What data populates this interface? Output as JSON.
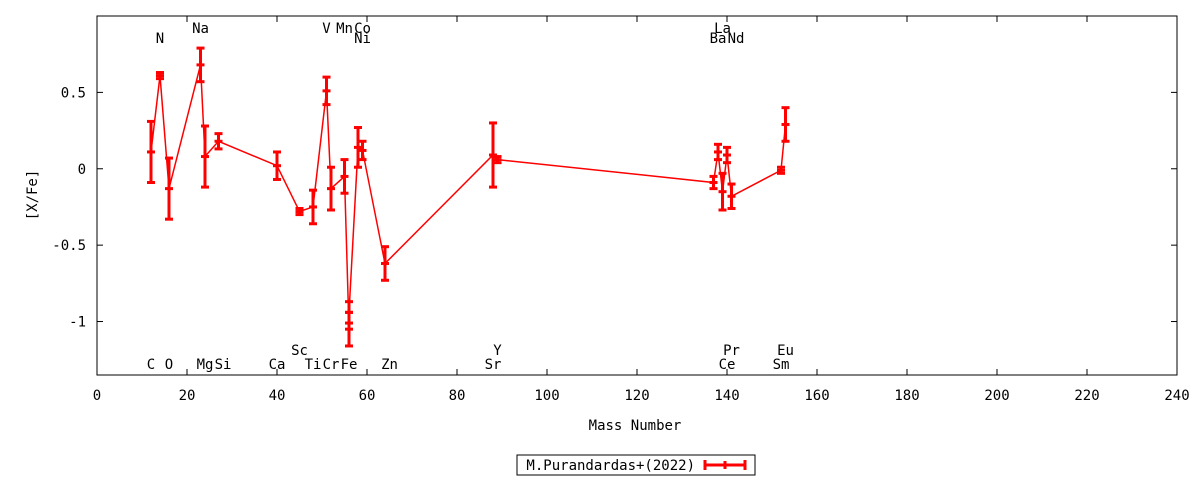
{
  "chart_data": {
    "type": "line",
    "xlabel": "Mass Number",
    "ylabel": "[X/Fe]",
    "xlim": [
      0,
      240
    ],
    "ylim": [
      -1.35,
      1.0
    ],
    "x_ticks": [
      "0",
      "20",
      "40",
      "60",
      "80",
      "100",
      "120",
      "140",
      "160",
      "180",
      "200",
      "220",
      "240"
    ],
    "x_tick_values": [
      0,
      20,
      40,
      60,
      80,
      100,
      120,
      140,
      160,
      180,
      200,
      220,
      240
    ],
    "y_ticks": [
      "0.5",
      "0",
      "-0.5",
      "-1"
    ],
    "y_tick_values": [
      0.5,
      0,
      -0.5,
      -1
    ],
    "grid": false,
    "legend_position": "bottom-center",
    "series": [
      {
        "name": "M.Purandardas+(2022)",
        "color": "#ff0000",
        "points": [
          {
            "x": 12,
            "y": 0.11,
            "err": 0.2
          },
          {
            "x": 14,
            "y": 0.61,
            "err": 0.02
          },
          {
            "x": 16,
            "y": -0.13,
            "err": 0.2
          },
          {
            "x": 23,
            "y": 0.68,
            "err": 0.11
          },
          {
            "x": 24,
            "y": 0.08,
            "err": 0.2
          },
          {
            "x": 27,
            "y": 0.18,
            "err": 0.05
          },
          {
            "x": 40,
            "y": 0.02,
            "err": 0.09
          },
          {
            "x": 45,
            "y": -0.28,
            "err": 0.02
          },
          {
            "x": 48,
            "y": -0.25,
            "err": 0.11
          },
          {
            "x": 51,
            "y": 0.51,
            "err": 0.09
          },
          {
            "x": 52,
            "y": -0.13,
            "err": 0.14
          },
          {
            "x": 55,
            "y": -0.05,
            "err": 0.11
          },
          {
            "x": 56,
            "y": -1.05,
            "err": 0.11
          },
          {
            "x": 56,
            "y": -0.94,
            "err": 0.07
          },
          {
            "x": 58,
            "y": 0.14,
            "err": 0.13
          },
          {
            "x": 59,
            "y": 0.12,
            "err": 0.06
          },
          {
            "x": 64,
            "y": -0.62,
            "err": 0.11
          },
          {
            "x": 88,
            "y": 0.09,
            "err": 0.21
          },
          {
            "x": 89,
            "y": 0.06,
            "err": 0.02
          },
          {
            "x": 137,
            "y": -0.09,
            "err": 0.04
          },
          {
            "x": 138,
            "y": 0.11,
            "err": 0.05
          },
          {
            "x": 139,
            "y": -0.15,
            "err": 0.12
          },
          {
            "x": 140,
            "y": 0.09,
            "err": 0.05
          },
          {
            "x": 141,
            "y": -0.18,
            "err": 0.08
          },
          {
            "x": 152,
            "y": -0.01,
            "err": 0.02
          },
          {
            "x": 153,
            "y": 0.29,
            "err": 0.11
          }
        ]
      }
    ],
    "element_labels": [
      {
        "text": "C",
        "x": 12,
        "row": "bottom"
      },
      {
        "text": "O",
        "x": 16,
        "row": "bottom"
      },
      {
        "text": "Mg",
        "x": 24,
        "row": "bottom"
      },
      {
        "text": "Si",
        "x": 28,
        "row": "bottom"
      },
      {
        "text": "Ca",
        "x": 40,
        "row": "bottom"
      },
      {
        "text": "Ti",
        "x": 48,
        "row": "bottom"
      },
      {
        "text": "Cr",
        "x": 52,
        "row": "bottom"
      },
      {
        "text": "Fe",
        "x": 56,
        "row": "bottom"
      },
      {
        "text": "Zn",
        "x": 65,
        "row": "bottom"
      },
      {
        "text": "Sr",
        "x": 88,
        "row": "bottom"
      },
      {
        "text": "Ce",
        "x": 140,
        "row": "bottom"
      },
      {
        "text": "Sm",
        "x": 152,
        "row": "bottom"
      },
      {
        "text": "Sc",
        "x": 45,
        "row": "bottom-upper"
      },
      {
        "text": "Y",
        "x": 89,
        "row": "bottom-upper"
      },
      {
        "text": "Pr",
        "x": 141,
        "row": "bottom-upper"
      },
      {
        "text": "Eu",
        "x": 153,
        "row": "bottom-upper"
      },
      {
        "text": "Na",
        "x": 23,
        "row": "top-upper"
      },
      {
        "text": "V",
        "x": 51,
        "row": "top-upper"
      },
      {
        "text": "Mn",
        "x": 55,
        "row": "top-upper"
      },
      {
        "text": "Co",
        "x": 59,
        "row": "top-upper"
      },
      {
        "text": "La",
        "x": 139,
        "row": "top-upper"
      },
      {
        "text": "N",
        "x": 14,
        "row": "top"
      },
      {
        "text": "Ni",
        "x": 59,
        "row": "top"
      },
      {
        "text": "Ba",
        "x": 138,
        "row": "top"
      },
      {
        "text": "Nd",
        "x": 142,
        "row": "top"
      }
    ]
  }
}
